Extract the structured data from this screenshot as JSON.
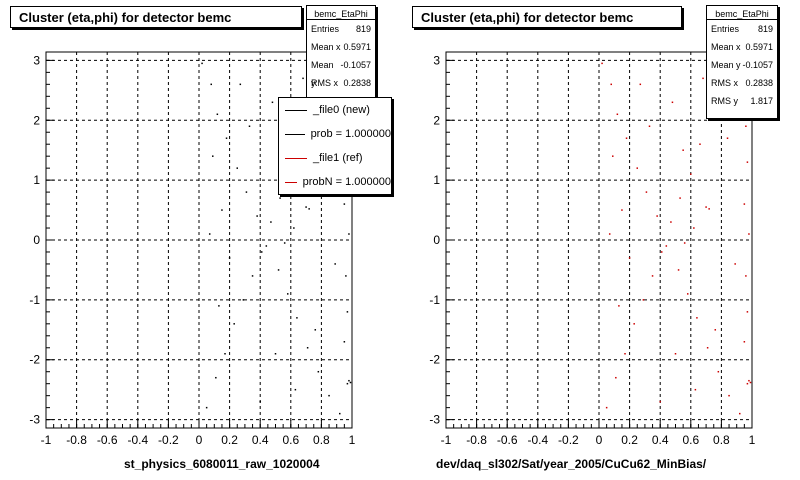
{
  "chart_data": [
    {
      "type": "scatter",
      "title": "Cluster (eta,phi) for detector bemc",
      "xlabel": "st_physics_6080011_raw_1020004",
      "ylabel": "",
      "xlim": [
        -1,
        1
      ],
      "ylim": [
        -3.14,
        3.14
      ],
      "x_ticks": [
        "-1",
        "-0.8",
        "-0.6",
        "-0.4",
        "-0.2",
        "0",
        "0.2",
        "0.4",
        "0.6",
        "0.8",
        "1"
      ],
      "y_ticks": [
        "-3",
        "-2",
        "-1",
        "0",
        "1",
        "2",
        "3"
      ],
      "grid": true,
      "point_color": "#000000",
      "points": [
        [
          0.02,
          2.95
        ],
        [
          0.08,
          2.6
        ],
        [
          0.12,
          2.1
        ],
        [
          0.18,
          1.7
        ],
        [
          0.25,
          1.2
        ],
        [
          0.31,
          0.8
        ],
        [
          0.38,
          0.4
        ],
        [
          0.44,
          -0.1
        ],
        [
          0.52,
          -0.5
        ],
        [
          0.58,
          -0.9
        ],
        [
          0.64,
          -1.3
        ],
        [
          0.71,
          -1.8
        ],
        [
          0.78,
          -2.2
        ],
        [
          0.85,
          -2.6
        ],
        [
          0.92,
          -2.9
        ],
        [
          0.05,
          -2.8
        ],
        [
          0.11,
          -2.3
        ],
        [
          0.17,
          -1.9
        ],
        [
          0.23,
          -1.4
        ],
        [
          0.29,
          -1.0
        ],
        [
          0.35,
          -0.6
        ],
        [
          0.41,
          -0.2
        ],
        [
          0.47,
          0.3
        ],
        [
          0.53,
          0.7
        ],
        [
          0.6,
          1.1
        ],
        [
          0.66,
          1.6
        ],
        [
          0.73,
          2.0
        ],
        [
          0.8,
          2.4
        ],
        [
          0.86,
          2.8
        ],
        [
          0.93,
          2.5
        ],
        [
          0.96,
          1.9
        ],
        [
          0.97,
          1.3
        ],
        [
          0.95,
          0.6
        ],
        [
          0.98,
          0.1
        ],
        [
          0.96,
          -0.6
        ],
        [
          0.97,
          -1.2
        ],
        [
          0.95,
          -1.7
        ],
        [
          0.98,
          -2.35
        ],
        [
          0.97,
          -2.4
        ],
        [
          0.99,
          -2.38
        ],
        [
          0.72,
          0.52
        ],
        [
          0.7,
          0.55
        ],
        [
          0.56,
          -0.05
        ],
        [
          0.62,
          0.2
        ],
        [
          0.15,
          0.5
        ],
        [
          0.2,
          -0.3
        ],
        [
          0.33,
          1.9
        ],
        [
          0.48,
          2.3
        ],
        [
          0.63,
          -2.5
        ],
        [
          0.4,
          -2.7
        ],
        [
          0.27,
          2.6
        ],
        [
          0.09,
          1.4
        ],
        [
          0.07,
          0.1
        ],
        [
          0.13,
          -1.1
        ],
        [
          0.55,
          1.5
        ],
        [
          0.68,
          2.7
        ],
        [
          0.84,
          1.7
        ],
        [
          0.89,
          -0.4
        ],
        [
          0.76,
          -1.5
        ],
        [
          0.5,
          -1.9
        ]
      ],
      "stats": {
        "name": "bemc_EtaPhi",
        "entries_label": "Entries",
        "entries": "819",
        "mean_x_label": "Mean x",
        "mean_x": "0.5971",
        "mean_y_label": "Mean y",
        "mean_y": "-0.1057",
        "rms_x_label": "RMS x",
        "rms_x": "0.2838"
      },
      "legend": [
        "_file0 (new)",
        "prob = 1.000000",
        "_file1 (ref)",
        "probN = 1.000000"
      ]
    },
    {
      "type": "scatter",
      "title": "Cluster (eta,phi) for detector bemc",
      "xlabel": "dev/daq_sl302/Sat/year_2005/CuCu62_MinBias/",
      "ylabel": "",
      "xlim": [
        -1,
        1
      ],
      "ylim": [
        -3.14,
        3.14
      ],
      "x_ticks": [
        "-1",
        "-0.8",
        "-0.6",
        "-0.4",
        "-0.2",
        "0",
        "0.2",
        "0.4",
        "0.6",
        "0.8",
        "1"
      ],
      "y_ticks": [
        "-3",
        "-2",
        "-1",
        "0",
        "1",
        "2",
        "3"
      ],
      "grid": true,
      "point_color": "#cc0000",
      "points": [
        [
          0.02,
          2.95
        ],
        [
          0.08,
          2.6
        ],
        [
          0.12,
          2.1
        ],
        [
          0.18,
          1.7
        ],
        [
          0.25,
          1.2
        ],
        [
          0.31,
          0.8
        ],
        [
          0.38,
          0.4
        ],
        [
          0.44,
          -0.1
        ],
        [
          0.52,
          -0.5
        ],
        [
          0.58,
          -0.9
        ],
        [
          0.64,
          -1.3
        ],
        [
          0.71,
          -1.8
        ],
        [
          0.78,
          -2.2
        ],
        [
          0.85,
          -2.6
        ],
        [
          0.92,
          -2.9
        ],
        [
          0.05,
          -2.8
        ],
        [
          0.11,
          -2.3
        ],
        [
          0.17,
          -1.9
        ],
        [
          0.23,
          -1.4
        ],
        [
          0.29,
          -1.0
        ],
        [
          0.35,
          -0.6
        ],
        [
          0.41,
          -0.2
        ],
        [
          0.47,
          0.3
        ],
        [
          0.53,
          0.7
        ],
        [
          0.6,
          1.1
        ],
        [
          0.66,
          1.6
        ],
        [
          0.73,
          2.0
        ],
        [
          0.8,
          2.4
        ],
        [
          0.86,
          2.8
        ],
        [
          0.93,
          2.5
        ],
        [
          0.96,
          1.9
        ],
        [
          0.97,
          1.3
        ],
        [
          0.95,
          0.6
        ],
        [
          0.98,
          0.1
        ],
        [
          0.96,
          -0.6
        ],
        [
          0.97,
          -1.2
        ],
        [
          0.95,
          -1.7
        ],
        [
          0.98,
          -2.35
        ],
        [
          0.97,
          -2.4
        ],
        [
          0.99,
          -2.38
        ],
        [
          0.72,
          0.52
        ],
        [
          0.7,
          0.55
        ],
        [
          0.56,
          -0.05
        ],
        [
          0.62,
          0.2
        ],
        [
          0.15,
          0.5
        ],
        [
          0.2,
          -0.3
        ],
        [
          0.33,
          1.9
        ],
        [
          0.48,
          2.3
        ],
        [
          0.63,
          -2.5
        ],
        [
          0.4,
          -2.7
        ],
        [
          0.27,
          2.6
        ],
        [
          0.09,
          1.4
        ],
        [
          0.07,
          0.1
        ],
        [
          0.13,
          -1.1
        ],
        [
          0.55,
          1.5
        ],
        [
          0.68,
          2.7
        ],
        [
          0.84,
          1.7
        ],
        [
          0.89,
          -0.4
        ],
        [
          0.76,
          -1.5
        ],
        [
          0.5,
          -1.9
        ]
      ],
      "stats": {
        "name": "bemc_EtaPhi",
        "entries_label": "Entries",
        "entries": "819",
        "mean_x_label": "Mean x",
        "mean_x": "0.5971",
        "mean_y_label": "Mean y",
        "mean_y": "-0.1057",
        "rms_x_label": "RMS x",
        "rms_x": "0.2838",
        "rms_y_label": "RMS y",
        "rms_y": "1.817"
      }
    }
  ]
}
